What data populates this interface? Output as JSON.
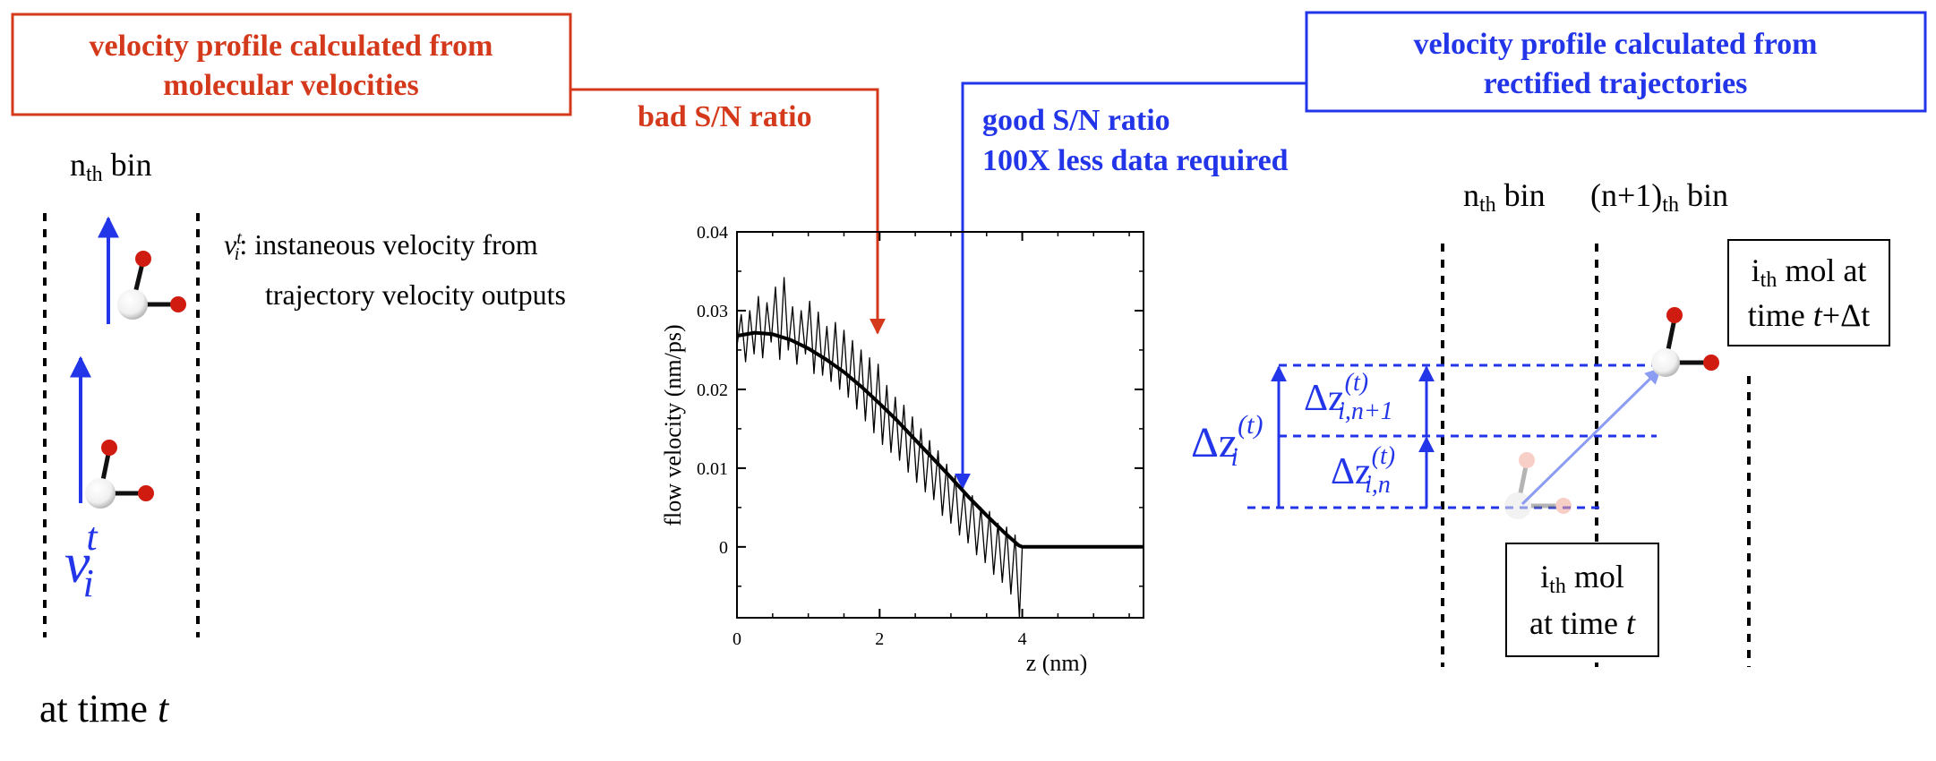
{
  "colors": {
    "red": "#d5391c",
    "blue": "#2335e8",
    "black": "#000000",
    "atom_red": "#d01c10",
    "faded_red": "#f2a99a",
    "arrow_light_blue": "#8c9cf2"
  },
  "left_box": {
    "line1": "velocity profile calculated from",
    "line2": "molecular velocities"
  },
  "right_box": {
    "line1": "velocity profile calculated from",
    "line2": "rectified trajectories"
  },
  "bad_label": "bad S/N ratio",
  "good_label": {
    "line1": "good S/N ratio",
    "line2": "100X less data required"
  },
  "left_panel": {
    "bin_n": "n",
    "bin_sub": "th",
    "bin_word": " bin",
    "v_symbol": "v",
    "v_sub": "i",
    "v_sup": "t",
    "colon_desc": ": instaneous velocity from",
    "desc_line2": "trajectory velocity outputs",
    "time_prefix": "at time ",
    "time_var": "t"
  },
  "chart_data": {
    "type": "line",
    "xlabel": "z (nm)",
    "ylabel": "flow velocity (nm/ps)",
    "xlim": [
      0,
      5.7
    ],
    "ylim": [
      -0.009,
      0.04
    ],
    "xticks": [
      "0",
      "2",
      "4"
    ],
    "yticks": [
      "0",
      "0.01",
      "0.02",
      "0.03",
      "0.04"
    ],
    "series": [
      {
        "style": "thick-smooth",
        "x": [
          0,
          0.25,
          0.5,
          0.75,
          1.0,
          1.25,
          1.5,
          1.75,
          2.0,
          2.25,
          2.5,
          2.75,
          3.0,
          3.25,
          3.5,
          3.75,
          3.95,
          4.0,
          5.7
        ],
        "y": [
          0.0268,
          0.0272,
          0.027,
          0.0263,
          0.0252,
          0.0238,
          0.0222,
          0.0203,
          0.0182,
          0.016,
          0.0136,
          0.0112,
          0.0088,
          0.0063,
          0.004,
          0.0018,
          0.0002,
          0.0,
          0.0
        ]
      },
      {
        "style": "thin-noisy",
        "x": [
          0,
          0.06,
          0.12,
          0.18,
          0.24,
          0.3,
          0.36,
          0.42,
          0.48,
          0.54,
          0.6,
          0.66,
          0.72,
          0.78,
          0.84,
          0.9,
          0.96,
          1.02,
          1.08,
          1.14,
          1.2,
          1.26,
          1.32,
          1.38,
          1.44,
          1.5,
          1.56,
          1.62,
          1.68,
          1.74,
          1.8,
          1.86,
          1.92,
          1.98,
          2.04,
          2.1,
          2.16,
          2.22,
          2.28,
          2.34,
          2.4,
          2.46,
          2.52,
          2.58,
          2.64,
          2.7,
          2.76,
          2.82,
          2.88,
          2.94,
          3.0,
          3.06,
          3.12,
          3.18,
          3.24,
          3.3,
          3.36,
          3.42,
          3.48,
          3.54,
          3.6,
          3.66,
          3.72,
          3.78,
          3.84,
          3.9,
          3.96,
          4.0,
          5.7
        ],
        "y": [
          0.0255,
          0.0295,
          0.0235,
          0.03,
          0.0245,
          0.0318,
          0.024,
          0.031,
          0.026,
          0.033,
          0.0238,
          0.0342,
          0.025,
          0.0305,
          0.0232,
          0.03,
          0.0245,
          0.0312,
          0.022,
          0.0298,
          0.0218,
          0.028,
          0.021,
          0.0285,
          0.02,
          0.0275,
          0.019,
          0.0262,
          0.0175,
          0.025,
          0.016,
          0.024,
          0.0145,
          0.0232,
          0.013,
          0.0205,
          0.012,
          0.019,
          0.011,
          0.018,
          0.0095,
          0.0165,
          0.0082,
          0.015,
          0.007,
          0.0135,
          0.006,
          0.0122,
          0.004,
          0.0105,
          0.003,
          0.009,
          0.0015,
          0.0072,
          0.0005,
          0.0065,
          -0.001,
          0.005,
          -0.002,
          0.0045,
          -0.0035,
          0.003,
          -0.0045,
          0.0025,
          -0.006,
          0.0015,
          -0.009,
          0.0,
          0.0
        ]
      }
    ]
  },
  "right_panel": {
    "bin_n": "n",
    "bin_n_sub": "th",
    "bin_n_word": " bin",
    "bin_n1": "(n+1)",
    "bin_n1_sub": "th",
    "bin_n1_word": " bin",
    "mol_t_line1_main": "i",
    "mol_t_line1_sub": "th",
    "mol_t_line1_word": " mol",
    "mol_t_line2_prefix": "at time ",
    "mol_t_line2_var": "t",
    "mol_tdt_line1_main": "i",
    "mol_tdt_line1_sub": "th",
    "mol_tdt_line1_word": " mol at",
    "mol_tdt_line2_prefix": "time ",
    "mol_tdt_line2_var": "t",
    "mol_tdt_line2_suffix": "+Δt",
    "dz_main": "Δz",
    "dz_sup": "(t)",
    "dz_sub_i": "i",
    "dz_sub_in1": "i,n+1",
    "dz_sub_in": "i,n"
  }
}
